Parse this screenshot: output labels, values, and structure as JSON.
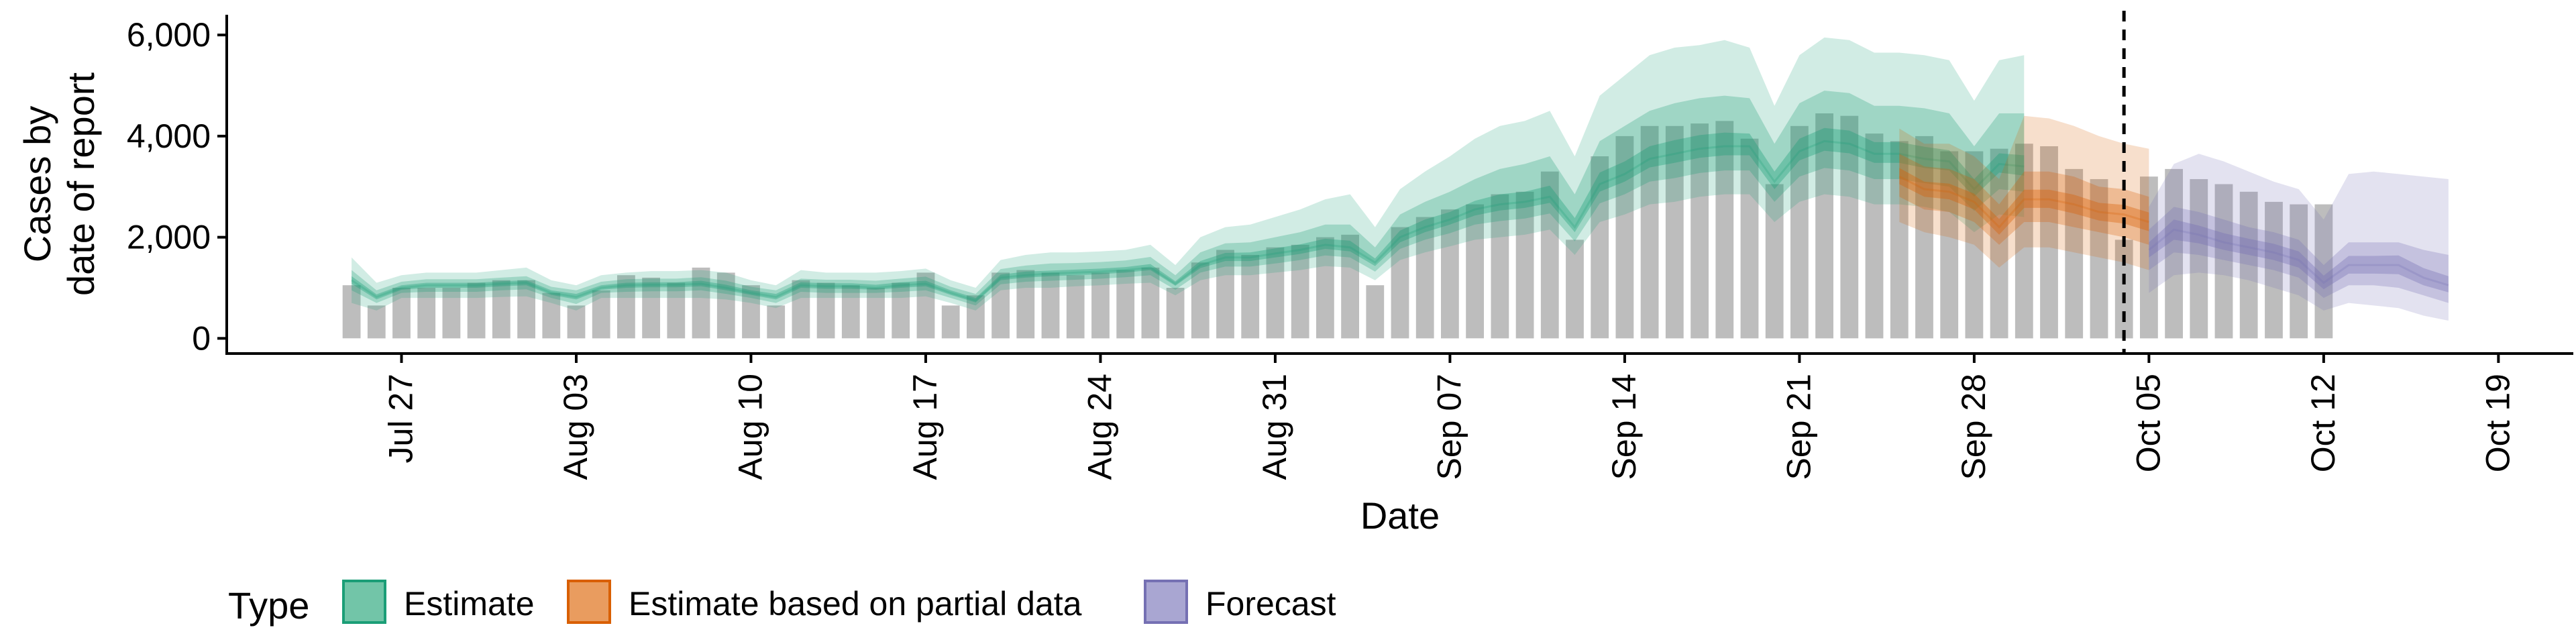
{
  "chart_data": {
    "type": "bar",
    "xlabel": "Date",
    "ylabel_lines": [
      "Cases by",
      "date of report"
    ],
    "ylim": [
      -300,
      6400
    ],
    "y_ticks": [
      0,
      2000,
      4000,
      6000
    ],
    "y_tick_labels": [
      "0",
      "2,000",
      "4,000",
      "6,000"
    ],
    "x_ticks": [
      "2020-07-27",
      "2020-08-03",
      "2020-08-10",
      "2020-08-17",
      "2020-08-24",
      "2020-08-31",
      "2020-09-07",
      "2020-09-14",
      "2020-09-21",
      "2020-09-28",
      "2020-10-05",
      "2020-10-12",
      "2020-10-19"
    ],
    "x_tick_labels": [
      "Jul 27",
      "Aug 03",
      "Aug 10",
      "Aug 17",
      "Aug 24",
      "Aug 31",
      "Sep 07",
      "Sep 14",
      "Sep 21",
      "Sep 28",
      "Oct 05",
      "Oct 12",
      "Oct 19"
    ],
    "xlim": [
      "2020-07-20",
      "2020-10-22"
    ],
    "grid": false,
    "forecast_start_line": "2020-10-04",
    "bar_color": "#bdbdbd",
    "reported_cases": {
      "start_date": "2020-07-25",
      "values": [
        1050,
        650,
        1000,
        1000,
        1000,
        1100,
        1150,
        1150,
        900,
        650,
        950,
        1250,
        1200,
        1100,
        1400,
        1300,
        1050,
        650,
        1150,
        1100,
        1050,
        1000,
        1100,
        1300,
        650,
        850,
        1300,
        1350,
        1300,
        1250,
        1300,
        1350,
        1400,
        1000,
        1500,
        1750,
        1650,
        1800,
        1850,
        2000,
        2050,
        1050,
        2200,
        2400,
        2550,
        2650,
        2850,
        2900,
        3300,
        1950,
        3600,
        4000,
        4200,
        4200,
        4250,
        4300,
        3950,
        3050,
        4200,
        4450,
        4400,
        4050,
        3900,
        4000,
        3700,
        3700,
        3750,
        3850,
        3800,
        3350,
        3150,
        1950,
        3200,
        3350,
        3150,
        3050,
        2900,
        2700,
        2650,
        2650
      ]
    },
    "series": [
      {
        "name": "Estimate",
        "color": "#1b9e77",
        "start_date": "2020-07-25",
        "median": [
          1150,
          820,
          1000,
          1050,
          1050,
          1050,
          1080,
          1100,
          900,
          820,
          1000,
          1050,
          1060,
          1060,
          1080,
          1000,
          900,
          820,
          1050,
          1030,
          1030,
          1000,
          1050,
          1080,
          900,
          750,
          1200,
          1250,
          1280,
          1300,
          1320,
          1350,
          1400,
          1080,
          1450,
          1600,
          1600,
          1680,
          1750,
          1850,
          1800,
          1500,
          2000,
          2200,
          2350,
          2550,
          2650,
          2700,
          2800,
          2200,
          3050,
          3250,
          3550,
          3650,
          3750,
          3800,
          3800,
          3100,
          3700,
          3900,
          3850,
          3650,
          3650,
          3550,
          3500,
          2950,
          3450,
          3400
        ],
        "lower_90": [
          700,
          550,
          800,
          800,
          800,
          800,
          820,
          830,
          700,
          550,
          800,
          800,
          800,
          800,
          800,
          770,
          700,
          600,
          800,
          800,
          800,
          800,
          800,
          830,
          700,
          550,
          950,
          1000,
          1000,
          1030,
          1050,
          1080,
          1100,
          850,
          1150,
          1250,
          1250,
          1300,
          1350,
          1430,
          1400,
          1150,
          1550,
          1700,
          1820,
          1950,
          2000,
          2050,
          2150,
          1650,
          2300,
          2450,
          2650,
          2700,
          2800,
          2850,
          2850,
          2300,
          2700,
          2850,
          2800,
          2650,
          2650,
          2600,
          2500,
          2100,
          2450,
          2400
        ],
        "upper_90": [
          1600,
          1100,
          1250,
          1300,
          1300,
          1300,
          1350,
          1400,
          1150,
          1050,
          1250,
          1300,
          1330,
          1330,
          1350,
          1300,
          1150,
          1050,
          1350,
          1300,
          1300,
          1300,
          1330,
          1380,
          1150,
          1000,
          1550,
          1650,
          1700,
          1700,
          1720,
          1750,
          1850,
          1450,
          2000,
          2200,
          2250,
          2400,
          2550,
          2750,
          2850,
          2200,
          2950,
          3300,
          3600,
          3950,
          4200,
          4300,
          4500,
          3600,
          4800,
          5200,
          5600,
          5750,
          5800,
          5900,
          5750,
          4600,
          5600,
          5950,
          5900,
          5650,
          5650,
          5600,
          5500,
          4700,
          5500,
          5600
        ],
        "lower_50": [
          950,
          700,
          900,
          920,
          920,
          920,
          950,
          970,
          800,
          680,
          900,
          920,
          930,
          930,
          950,
          880,
          800,
          700,
          920,
          900,
          900,
          900,
          920,
          950,
          800,
          650,
          1070,
          1120,
          1140,
          1160,
          1180,
          1210,
          1250,
          960,
          1300,
          1420,
          1420,
          1480,
          1550,
          1640,
          1600,
          1320,
          1770,
          1950,
          2080,
          2250,
          2320,
          2370,
          2470,
          1920,
          2670,
          2850,
          3100,
          3170,
          3270,
          3320,
          3320,
          2700,
          3200,
          3370,
          3320,
          3150,
          3150,
          3070,
          3000,
          2520,
          2950,
          2900
        ],
        "upper_50": [
          1350,
          950,
          1120,
          1170,
          1170,
          1170,
          1200,
          1230,
          1020,
          950,
          1120,
          1170,
          1180,
          1180,
          1210,
          1140,
          1020,
          950,
          1180,
          1160,
          1160,
          1140,
          1180,
          1220,
          1020,
          880,
          1370,
          1440,
          1480,
          1490,
          1510,
          1540,
          1610,
          1250,
          1700,
          1880,
          1900,
          2000,
          2100,
          2250,
          2250,
          1800,
          2450,
          2700,
          2900,
          3150,
          3350,
          3450,
          3600,
          2850,
          3900,
          4200,
          4500,
          4650,
          4750,
          4800,
          4750,
          3850,
          4650,
          4900,
          4850,
          4600,
          4600,
          4550,
          4450,
          3800,
          4450,
          4450
        ],
        "lower_20": [
          1080,
          770,
          960,
          1000,
          1000,
          1000,
          1030,
          1050,
          860,
          770,
          960,
          1000,
          1010,
          1010,
          1030,
          950,
          860,
          770,
          1000,
          980,
          980,
          960,
          1000,
          1030,
          860,
          710,
          1150,
          1200,
          1230,
          1250,
          1270,
          1300,
          1350,
          1040,
          1390,
          1530,
          1530,
          1600,
          1670,
          1770,
          1720,
          1430,
          1900,
          2100,
          2250,
          2430,
          2530,
          2580,
          2680,
          2100,
          2900,
          3100,
          3380,
          3470,
          3570,
          3620,
          3620,
          2950,
          3520,
          3710,
          3660,
          3470,
          3470,
          3370,
          3320,
          2800,
          3280,
          3220
        ],
        "upper_20": [
          1230,
          870,
          1050,
          1100,
          1100,
          1100,
          1130,
          1150,
          950,
          880,
          1050,
          1100,
          1110,
          1110,
          1140,
          1060,
          950,
          880,
          1110,
          1090,
          1090,
          1060,
          1110,
          1140,
          950,
          800,
          1260,
          1320,
          1340,
          1360,
          1380,
          1410,
          1470,
          1130,
          1530,
          1690,
          1700,
          1780,
          1860,
          1970,
          1930,
          1580,
          2130,
          2350,
          2500,
          2720,
          2850,
          2900,
          3020,
          2380,
          3280,
          3500,
          3800,
          3920,
          4020,
          4070,
          4050,
          3300,
          3950,
          4160,
          4110,
          3880,
          3880,
          3790,
          3720,
          3150,
          3660,
          3620
        ]
      },
      {
        "name": "Estimate based on partial data",
        "color": "#d95f02",
        "start_date": "2020-09-25",
        "median": [
          3200,
          2950,
          2900,
          2700,
          2200,
          2750,
          2750,
          2650,
          2500,
          2450,
          2300
        ],
        "lower_90": [
          2300,
          2100,
          2000,
          1850,
          1400,
          1800,
          1800,
          1700,
          1600,
          1500,
          1350
        ],
        "upper_90": [
          4150,
          3850,
          3850,
          3600,
          3150,
          4400,
          4350,
          4200,
          4000,
          3850,
          3750
        ],
        "lower_50": [
          2800,
          2550,
          2500,
          2300,
          1850,
          2300,
          2300,
          2200,
          2100,
          2000,
          1850
        ],
        "upper_50": [
          3650,
          3400,
          3350,
          3150,
          2650,
          3300,
          3300,
          3200,
          3000,
          2950,
          2800
        ],
        "lower_20": [
          3050,
          2800,
          2750,
          2550,
          2050,
          2580,
          2580,
          2470,
          2330,
          2270,
          2120
        ],
        "upper_20": [
          3370,
          3100,
          3060,
          2860,
          2360,
          2940,
          2940,
          2840,
          2680,
          2640,
          2490
        ]
      },
      {
        "name": "Forecast",
        "color": "#7570b3",
        "start_date": "2020-10-05",
        "median": [
          1750,
          2150,
          2050,
          1900,
          1800,
          1700,
          1550,
          1100,
          1450,
          1450,
          1450,
          1200,
          1050
        ],
        "lower_90": [
          900,
          1250,
          1300,
          1250,
          1150,
          1000,
          850,
          550,
          700,
          650,
          600,
          450,
          350
        ],
        "upper_90": [
          2600,
          3450,
          3650,
          3500,
          3300,
          3100,
          2950,
          2350,
          3250,
          3300,
          3250,
          3200,
          3150
        ],
        "lower_50": [
          1350,
          1700,
          1650,
          1550,
          1450,
          1350,
          1200,
          800,
          1050,
          1050,
          1000,
          850,
          700
        ],
        "upper_50": [
          2150,
          2600,
          2500,
          2350,
          2200,
          2100,
          1950,
          1450,
          1900,
          1900,
          1900,
          1750,
          1650
        ],
        "lower_20": [
          1600,
          1950,
          1880,
          1750,
          1650,
          1550,
          1400,
          970,
          1280,
          1280,
          1270,
          1050,
          910
        ],
        "upper_20": [
          1900,
          2350,
          2230,
          2080,
          1970,
          1870,
          1720,
          1240,
          1630,
          1630,
          1640,
          1390,
          1230
        ]
      }
    ],
    "legend": {
      "title": "Type",
      "position": "bottom",
      "items": [
        {
          "label": "Estimate",
          "fill": "#72c5a8",
          "border": "#1b9e77"
        },
        {
          "label": "Estimate based on partial data",
          "fill": "#e99c5f",
          "border": "#d95f02"
        },
        {
          "label": "Forecast",
          "fill": "#a9a6d2",
          "border": "#7570b3"
        }
      ]
    }
  }
}
